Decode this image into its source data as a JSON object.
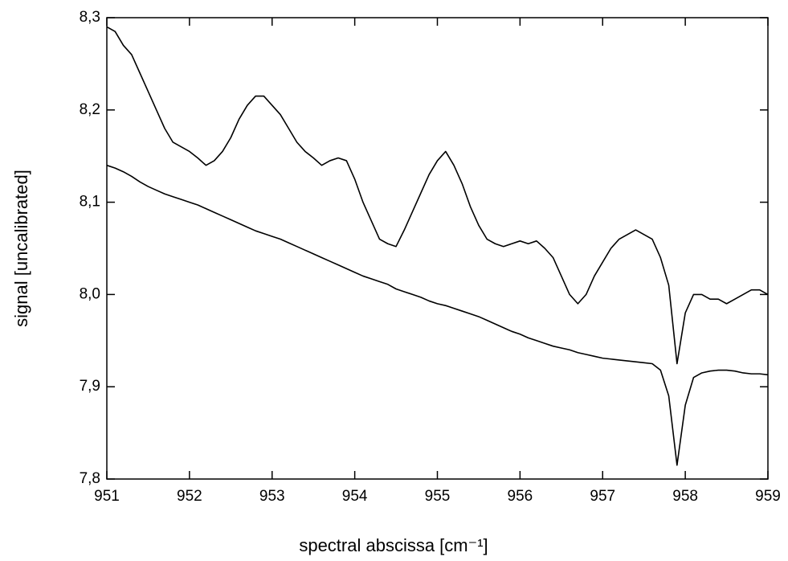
{
  "chart_data": {
    "type": "line",
    "x_label": "spectral abscissa [cm⁻¹]",
    "y_label": "signal [uncalibrated]",
    "x": [
      951.0,
      951.1,
      951.2,
      951.3,
      951.4,
      951.5,
      951.6,
      951.7,
      951.8,
      951.9,
      952.0,
      952.1,
      952.2,
      952.3,
      952.4,
      952.5,
      952.6,
      952.7,
      952.8,
      952.9,
      953.0,
      953.1,
      953.2,
      953.3,
      953.4,
      953.5,
      953.6,
      953.7,
      953.8,
      953.9,
      954.0,
      954.1,
      954.2,
      954.3,
      954.4,
      954.5,
      954.6,
      954.7,
      954.8,
      954.9,
      955.0,
      955.1,
      955.2,
      955.3,
      955.4,
      955.5,
      955.6,
      955.7,
      955.8,
      955.9,
      956.0,
      956.1,
      956.2,
      956.3,
      956.4,
      956.5,
      956.6,
      956.7,
      956.8,
      956.9,
      957.0,
      957.1,
      957.2,
      957.3,
      957.4,
      957.5,
      957.6,
      957.7,
      957.8,
      957.9,
      958.0,
      958.1,
      958.2,
      958.3,
      958.4,
      958.5,
      958.6,
      958.7,
      958.8,
      958.9,
      959.0
    ],
    "series": [
      {
        "color": "#000000",
        "values": [
          8.29,
          8.285,
          8.27,
          8.26,
          8.24,
          8.22,
          8.2,
          8.18,
          8.165,
          8.16,
          8.155,
          8.148,
          8.14,
          8.145,
          8.155,
          8.17,
          8.19,
          8.205,
          8.215,
          8.215,
          8.205,
          8.195,
          8.18,
          8.165,
          8.155,
          8.148,
          8.14,
          8.145,
          8.148,
          8.145,
          8.125,
          8.1,
          8.08,
          8.06,
          8.055,
          8.052,
          8.07,
          8.09,
          8.11,
          8.13,
          8.145,
          8.155,
          8.14,
          8.12,
          8.095,
          8.075,
          8.06,
          8.055,
          8.052,
          8.055,
          8.058,
          8.055,
          8.058,
          8.05,
          8.04,
          8.02,
          8.0,
          7.99,
          8.0,
          8.02,
          8.035,
          8.05,
          8.06,
          8.065,
          8.07,
          8.065,
          8.06,
          8.04,
          8.01,
          7.925,
          7.98,
          8.0,
          8.0,
          7.995,
          7.995,
          7.99,
          7.995,
          8.0,
          8.005,
          8.005,
          8.0
        ]
      },
      {
        "color": "#000000",
        "values": [
          8.14,
          8.137,
          8.133,
          8.128,
          8.122,
          8.117,
          8.113,
          8.109,
          8.106,
          8.103,
          8.1,
          8.097,
          8.093,
          8.089,
          8.085,
          8.081,
          8.077,
          8.073,
          8.069,
          8.066,
          8.063,
          8.06,
          8.056,
          8.052,
          8.048,
          8.044,
          8.04,
          8.036,
          8.032,
          8.028,
          8.024,
          8.02,
          8.017,
          8.014,
          8.011,
          8.006,
          8.003,
          8.0,
          7.997,
          7.993,
          7.99,
          7.988,
          7.985,
          7.982,
          7.979,
          7.976,
          7.972,
          7.968,
          7.964,
          7.96,
          7.957,
          7.953,
          7.95,
          7.947,
          7.944,
          7.942,
          7.94,
          7.937,
          7.935,
          7.933,
          7.931,
          7.93,
          7.929,
          7.928,
          7.927,
          7.926,
          7.925,
          7.918,
          7.89,
          7.815,
          7.88,
          7.91,
          7.915,
          7.917,
          7.918,
          7.918,
          7.917,
          7.915,
          7.914,
          7.914,
          7.913
        ]
      }
    ],
    "xlim": [
      951,
      959
    ],
    "xticks": [
      951,
      952,
      953,
      954,
      955,
      956,
      957,
      958,
      959
    ],
    "ylim": [
      7.8,
      8.3
    ],
    "yticks": [
      {
        "value": 7.8,
        "label": "7,8"
      },
      {
        "value": 7.9,
        "label": "7,9"
      },
      {
        "value": 8.0,
        "label": "8,0"
      },
      {
        "value": 8.1,
        "label": "8,1"
      },
      {
        "value": 8.2,
        "label": "8,2"
      },
      {
        "value": 8.3,
        "label": "8,3"
      }
    ],
    "grid": false
  }
}
